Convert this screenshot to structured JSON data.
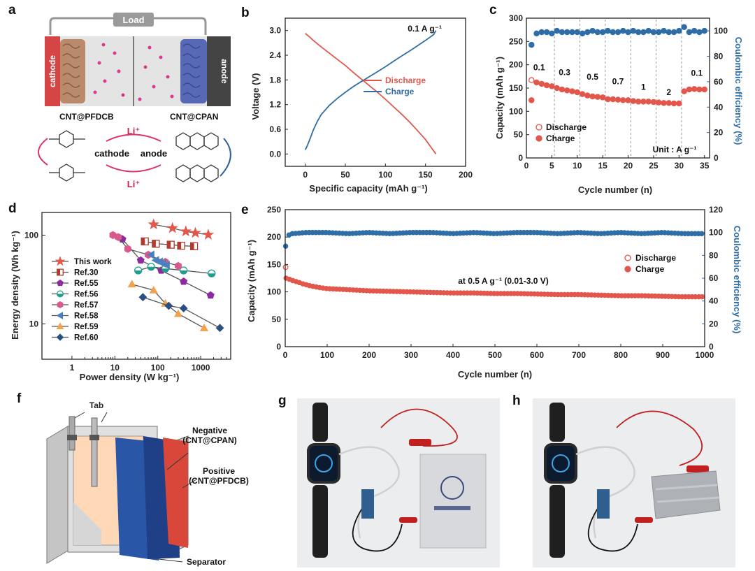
{
  "panel_labels": [
    "a",
    "b",
    "c",
    "d",
    "e",
    "f",
    "g",
    "h"
  ],
  "colors": {
    "discharge": "#e2574c",
    "charge": "#2f6da6",
    "coulombic": "#2f6da6",
    "cathode": "#d64545",
    "anode": "#444444",
    "pouch_negative": "#2a56a8",
    "pouch_positive": "#d9473a",
    "pouch_foil": "#ffd8b8"
  },
  "panel_a": {
    "load_label": "Load",
    "cathode_label": "cathode",
    "anode_label": "anode",
    "left_material": "CNT@PFDCB",
    "right_material": "CNT@CPAN",
    "cycle_top": "Li⁺",
    "cycle_bottom": "Li⁺",
    "cycle_left": "cathode",
    "cycle_right": "anode"
  },
  "panel_f": {
    "tab_label": "Tab",
    "negative_label_1": "Negative",
    "negative_label_2": "(CNT@CPAN)",
    "positive_label_1": "Positive",
    "positive_label_2": "(CNT@PFDCB)",
    "separator_label": "Separator"
  },
  "chart_data": [
    {
      "panel": "b",
      "type": "line",
      "xlabel": "Specific capacity (mAh g⁻¹)",
      "ylabel": "Voltage (V)",
      "xlim": [
        -25,
        200
      ],
      "ylim": [
        -0.3,
        3.3
      ],
      "xticks": [
        0,
        50,
        100,
        150,
        200
      ],
      "yticks": [
        0.0,
        0.6,
        1.2,
        1.8,
        2.4,
        3.0
      ],
      "annotation": "0.1 A g⁻¹",
      "legend_position": "right",
      "series": [
        {
          "name": "Discharge",
          "color": "#e2574c",
          "x": [
            0,
            5,
            10,
            20,
            30,
            40,
            50,
            60,
            70,
            80,
            90,
            100,
            110,
            120,
            130,
            140,
            150,
            160,
            163
          ],
          "y": [
            2.93,
            2.85,
            2.76,
            2.6,
            2.45,
            2.3,
            2.15,
            1.98,
            1.82,
            1.66,
            1.5,
            1.33,
            1.15,
            0.97,
            0.78,
            0.57,
            0.35,
            0.08,
            0.0
          ]
        },
        {
          "name": "Charge",
          "color": "#2f6da6",
          "x": [
            0,
            2,
            5,
            10,
            15,
            20,
            30,
            40,
            50,
            60,
            70,
            80,
            90,
            100,
            110,
            120,
            130,
            140,
            150,
            160,
            163
          ],
          "y": [
            0.1,
            0.18,
            0.32,
            0.58,
            0.79,
            0.96,
            1.18,
            1.35,
            1.5,
            1.64,
            1.76,
            1.88,
            2.0,
            2.12,
            2.25,
            2.38,
            2.5,
            2.63,
            2.76,
            2.9,
            3.0
          ]
        }
      ]
    },
    {
      "panel": "c",
      "type": "scatter",
      "xlabel": "Cycle number (n)",
      "ylabel": "Capacity (mAh g⁻¹)",
      "y2label": "Coulombic efficiency (%)",
      "xlim": [
        0,
        36
      ],
      "ylim": [
        0,
        300
      ],
      "y2lim": [
        0,
        110
      ],
      "xticks": [
        0,
        5,
        10,
        15,
        20,
        25,
        30,
        35
      ],
      "yticks": [
        0,
        50,
        100,
        150,
        200,
        250,
        300
      ],
      "y2ticks": [
        0,
        20,
        40,
        60,
        80,
        100
      ],
      "rate_labels": [
        {
          "text": "0.1",
          "x": 2.5,
          "y": 188
        },
        {
          "text": "0.3",
          "x": 7.5,
          "y": 178
        },
        {
          "text": "0.5",
          "x": 13.0,
          "y": 168
        },
        {
          "text": "0.7",
          "x": 18.0,
          "y": 158
        },
        {
          "text": "1",
          "x": 23.0,
          "y": 146
        },
        {
          "text": "2",
          "x": 28.0,
          "y": 135
        },
        {
          "text": "0.1",
          "x": 33.5,
          "y": 176
        }
      ],
      "dividers": [
        5.5,
        10.5,
        15.5,
        20.5,
        25.5,
        30.5
      ],
      "unit_label": "Unit : A g⁻¹",
      "legend_position": "bottom-left",
      "series": [
        {
          "name": "Discharge",
          "marker": "open-circle",
          "color": "#e2574c",
          "x": [
            1
          ],
          "y": [
            167
          ]
        },
        {
          "name": "Charge",
          "marker": "filled-circle",
          "color": "#e2574c",
          "x": [
            1,
            2,
            3,
            4,
            5,
            6,
            7,
            8,
            9,
            10,
            11,
            12,
            13,
            14,
            15,
            16,
            17,
            18,
            19,
            20,
            21,
            22,
            23,
            24,
            25,
            26,
            27,
            28,
            29,
            30,
            31,
            32,
            33,
            34,
            35
          ],
          "y": [
            124,
            162,
            159,
            156,
            154,
            150,
            147,
            145,
            143,
            141,
            137,
            134,
            132,
            131,
            130,
            126,
            126,
            125,
            124,
            124,
            122,
            121,
            121,
            121,
            120,
            119,
            118,
            118,
            117,
            117,
            143,
            147,
            148,
            147,
            147
          ]
        },
        {
          "name": "Coulombic efficiency",
          "marker": "filled-circle",
          "color": "#2f6da6",
          "axis": "right",
          "x": [
            1,
            2,
            3,
            4,
            5,
            6,
            7,
            8,
            9,
            10,
            11,
            12,
            13,
            14,
            15,
            16,
            17,
            18,
            19,
            20,
            21,
            22,
            23,
            24,
            25,
            26,
            27,
            28,
            29,
            30,
            31,
            32,
            33,
            34,
            35
          ],
          "y": [
            89,
            98,
            99,
            99,
            98,
            100,
            99,
            99,
            99,
            99,
            98,
            99,
            100,
            99,
            99,
            100,
            99,
            99,
            100,
            99,
            100,
            99,
            99,
            100,
            99,
            99,
            100,
            99,
            99,
            100,
            103,
            99,
            100,
            99,
            100
          ]
        }
      ]
    },
    {
      "panel": "d",
      "type": "line",
      "log_x": true,
      "log_y": true,
      "xlabel": "Power density (W kg⁻¹)",
      "ylabel": "Energy density (Wh kg⁻¹)",
      "xlim": [
        0.2,
        5000
      ],
      "ylim": [
        4,
        180
      ],
      "xticks": [
        1,
        10,
        100,
        1000
      ],
      "yticks": [
        10,
        100
      ],
      "legend_position": "left",
      "series": [
        {
          "name": "This work",
          "marker": "star",
          "color": "#e2574c",
          "x": [
            80,
            220,
            450,
            750,
            1500
          ],
          "y": [
            132,
            120,
            110,
            106,
            101
          ]
        },
        {
          "name": "Ref.30",
          "marker": "square",
          "color": "#b23a2e",
          "x": [
            50,
            90,
            200,
            350,
            700
          ],
          "y": [
            85,
            80,
            78,
            76,
            75
          ]
        },
        {
          "name": "Ref.55",
          "marker": "pentagon",
          "color": "#8e2aa0",
          "x": [
            15,
            40,
            120,
            400,
            1700
          ],
          "y": [
            90,
            52,
            40,
            30,
            21
          ]
        },
        {
          "name": "Ref.56",
          "marker": "circle",
          "color": "#1f9e8f",
          "x": [
            35,
            70,
            150,
            400,
            1800
          ],
          "y": [
            40,
            44,
            42,
            40,
            37
          ]
        },
        {
          "name": "Ref.57",
          "marker": "hexagon",
          "color": "#d85a8c",
          "x": [
            9,
            12,
            20,
            60,
            150,
            300
          ],
          "y": [
            100,
            95,
            70,
            60,
            50,
            45
          ]
        },
        {
          "name": "Ref.58",
          "marker": "triangle-left",
          "color": "#4a7fc1",
          "x": [
            70,
            90,
            110,
            130,
            160
          ],
          "y": [
            60,
            52,
            50,
            48,
            46
          ]
        },
        {
          "name": "Ref.59",
          "marker": "triangle-up",
          "color": "#f2a24e",
          "x": [
            25,
            80,
            150,
            300,
            1200
          ],
          "y": [
            28,
            24,
            17,
            13,
            9
          ]
        },
        {
          "name": "Ref.60",
          "marker": "diamond",
          "color": "#2b4f80",
          "x": [
            45,
            180,
            400,
            2800
          ],
          "y": [
            20,
            16,
            15,
            9
          ]
        }
      ]
    },
    {
      "panel": "e",
      "type": "scatter",
      "xlabel": "Cycle number (n)",
      "ylabel": "Capacity (mAh g⁻¹)",
      "y2label": "Coulombic efficiency (%)",
      "xlim": [
        0,
        1000
      ],
      "ylim": [
        0,
        250
      ],
      "y2lim": [
        0,
        120
      ],
      "xticks": [
        0,
        100,
        200,
        300,
        400,
        500,
        600,
        700,
        800,
        900,
        1000
      ],
      "yticks": [
        0,
        50,
        100,
        150,
        200,
        250
      ],
      "y2ticks": [
        0,
        20,
        40,
        60,
        80,
        100,
        120
      ],
      "annotation": "at 0.5 A g⁻¹ (0.01-3.0 V)",
      "legend_position": "right",
      "series": [
        {
          "name": "Discharge",
          "marker": "open-circle",
          "color": "#e2574c",
          "x": [
            1
          ],
          "y": [
            145
          ]
        },
        {
          "name": "Charge",
          "marker": "filled-circle",
          "color": "#e2574c",
          "x": [
            2,
            10,
            20,
            30,
            40,
            50,
            60,
            80,
            100,
            150,
            200,
            250,
            300,
            350,
            400,
            450,
            500,
            550,
            600,
            650,
            700,
            750,
            800,
            850,
            900,
            950,
            1000
          ],
          "y": [
            125,
            123,
            120,
            118,
            115,
            113,
            111,
            108,
            106,
            104,
            102,
            101,
            100,
            99,
            98,
            98,
            97,
            97,
            96,
            95,
            95,
            94,
            93,
            93,
            92,
            91,
            91
          ]
        },
        {
          "name": "Coulombic efficiency",
          "marker": "filled-circle",
          "color": "#2f6da6",
          "axis": "right",
          "x": [
            1,
            10,
            20,
            50,
            100,
            150,
            200,
            250,
            300,
            350,
            400,
            450,
            500,
            550,
            600,
            650,
            700,
            750,
            800,
            850,
            900,
            950,
            1000
          ],
          "y": [
            88,
            99,
            99,
            100,
            100,
            99,
            100,
            99,
            100,
            100,
            99,
            100,
            99,
            100,
            100,
            99,
            100,
            99,
            100,
            99,
            100,
            99,
            99
          ]
        }
      ]
    }
  ]
}
